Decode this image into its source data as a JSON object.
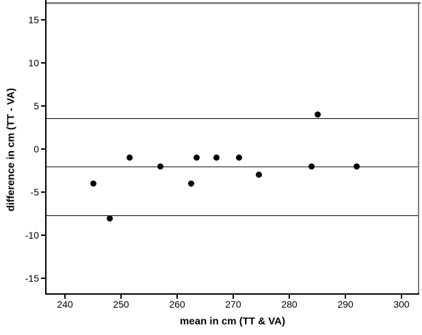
{
  "figure": {
    "background": "#ffffff",
    "frame": {
      "top_color": "#8a8a8a",
      "right_color": "#7d7d7d",
      "bottom_color": "#000000",
      "left_color": "#000000"
    }
  },
  "chart_data": {
    "type": "scatter",
    "title": "",
    "xlabel": "mean in cm (TT & VA)",
    "ylabel": "difference in cm (TT - VA)",
    "xlim": [
      236.7,
      302.9
    ],
    "ylim": [
      -16.8,
      16.9
    ],
    "x_ticks": [
      240,
      250,
      260,
      270,
      280,
      290,
      300
    ],
    "y_ticks": [
      15,
      10,
      5,
      0,
      -5,
      -10,
      -15
    ],
    "grid": false,
    "legend": null,
    "point_color": "#000000",
    "point_diameter": 9,
    "points": [
      [
        245,
        -4
      ],
      [
        248,
        -8
      ],
      [
        251.5,
        -1
      ],
      [
        257,
        -2
      ],
      [
        262.5,
        -4
      ],
      [
        263.5,
        -1
      ],
      [
        267,
        -1
      ],
      [
        271,
        -1
      ],
      [
        274.5,
        -3
      ],
      [
        284,
        -2
      ],
      [
        285,
        4
      ],
      [
        292,
        -2
      ]
    ],
    "reference_lines": [
      {
        "name": "upper-loa-line",
        "value": 3.57,
        "color": "#000000",
        "thickness": 1
      },
      {
        "name": "mean-line",
        "value": -2.08,
        "color": "#808080",
        "thickness": 2
      },
      {
        "name": "lower-loa-line",
        "value": -7.73,
        "color": "#000000",
        "thickness": 1
      }
    ]
  }
}
